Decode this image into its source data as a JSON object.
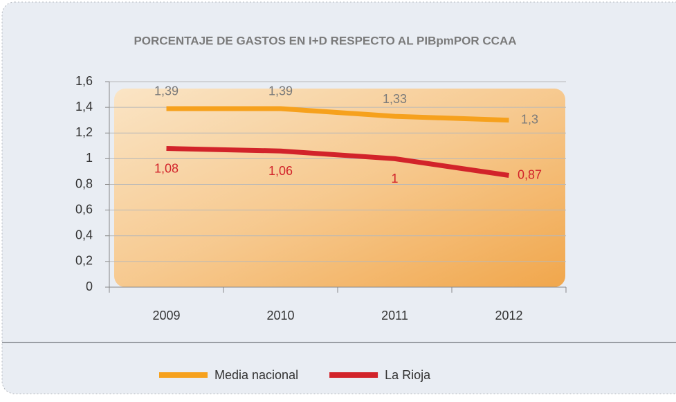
{
  "chart_data": {
    "type": "line",
    "title": "PORCENTAJE DE GASTOS EN I+D RESPECTO AL PIBpmPOR CCAA",
    "categories": [
      "2009",
      "2010",
      "2011",
      "2012"
    ],
    "series": [
      {
        "name": "Media nacional",
        "color": "#f6a11d",
        "values": [
          1.39,
          1.39,
          1.33,
          1.3
        ],
        "value_labels": [
          "1,39",
          "1,39",
          "1,33",
          "1,3"
        ]
      },
      {
        "name": "La Rioja",
        "color": "#d2232a",
        "values": [
          1.08,
          1.06,
          1,
          0.87
        ],
        "value_labels": [
          "1,08",
          "1,06",
          "1",
          "0,87"
        ]
      }
    ],
    "ylim": [
      0,
      1.6
    ],
    "yticks": [
      0,
      {
        "value": 0.2,
        "label": "0,2"
      },
      {
        "value": 0.4,
        "label": "0,4"
      },
      {
        "value": 0.6,
        "label": "0,6"
      },
      {
        "value": 0.8,
        "label": "0,8"
      },
      1,
      {
        "value": 1.2,
        "label": "1,2"
      },
      {
        "value": 1.4,
        "label": "1,4"
      },
      {
        "value": 1.6,
        "label": "1,6"
      }
    ],
    "grid": true
  }
}
